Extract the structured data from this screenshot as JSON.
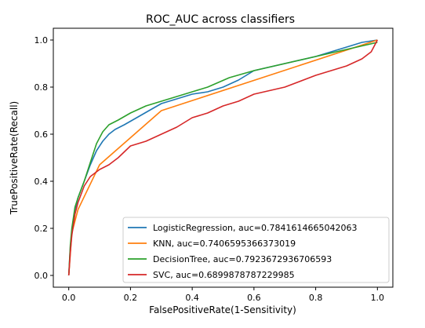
{
  "chart_data": {
    "type": "line",
    "title": "ROC_AUC across classifiers",
    "xlabel": "FalsePositiveRate(1-Sensitivity)",
    "ylabel": "TruePositiveRate(Recall)",
    "xlim": [
      -0.05,
      1.05
    ],
    "ylim": [
      -0.05,
      1.05
    ],
    "xticks": [
      "0.0",
      "0.2",
      "0.4",
      "0.6",
      "0.8",
      "1.0"
    ],
    "yticks": [
      "0.0",
      "0.2",
      "0.4",
      "0.6",
      "0.8",
      "1.0"
    ],
    "grid": false,
    "legend_position": "lower-right",
    "series": [
      {
        "name": "LogisticRegression, auc=0.7841614665042063",
        "color": "#1f77b4",
        "x": [
          0,
          0.005,
          0.01,
          0.02,
          0.03,
          0.05,
          0.07,
          0.09,
          0.11,
          0.13,
          0.15,
          0.18,
          0.22,
          0.26,
          0.3,
          0.35,
          0.4,
          0.45,
          0.5,
          0.55,
          0.6,
          0.7,
          0.8,
          0.9,
          0.95,
          1.0
        ],
        "y": [
          0,
          0.12,
          0.18,
          0.28,
          0.33,
          0.4,
          0.47,
          0.53,
          0.57,
          0.6,
          0.62,
          0.64,
          0.67,
          0.7,
          0.73,
          0.75,
          0.77,
          0.78,
          0.8,
          0.83,
          0.87,
          0.9,
          0.93,
          0.97,
          0.99,
          1.0
        ]
      },
      {
        "name": "KNN, auc=0.7406595366373019",
        "color": "#ff7f0e",
        "x": [
          0,
          0.01,
          0.03,
          0.1,
          0.3,
          1.0
        ],
        "y": [
          0,
          0.18,
          0.28,
          0.47,
          0.7,
          1.0
        ]
      },
      {
        "name": "DecisionTree, auc=0.7923672936706593",
        "color": "#2ca02c",
        "x": [
          0,
          0.005,
          0.01,
          0.02,
          0.03,
          0.05,
          0.07,
          0.09,
          0.11,
          0.13,
          0.16,
          0.2,
          0.25,
          0.3,
          0.35,
          0.4,
          0.45,
          0.52,
          0.6,
          0.7,
          0.8,
          0.9,
          1.0
        ],
        "y": [
          0,
          0.13,
          0.2,
          0.29,
          0.33,
          0.4,
          0.48,
          0.56,
          0.61,
          0.64,
          0.66,
          0.69,
          0.72,
          0.74,
          0.76,
          0.78,
          0.8,
          0.84,
          0.87,
          0.9,
          0.93,
          0.96,
          0.99
        ]
      },
      {
        "name": "SVC, auc=0.6899878787229985",
        "color": "#d62728",
        "x": [
          0,
          0.005,
          0.01,
          0.02,
          0.03,
          0.05,
          0.07,
          0.1,
          0.13,
          0.16,
          0.2,
          0.25,
          0.3,
          0.35,
          0.4,
          0.45,
          0.5,
          0.55,
          0.6,
          0.7,
          0.8,
          0.9,
          0.95,
          0.98,
          1.0
        ],
        "y": [
          0,
          0.1,
          0.17,
          0.26,
          0.31,
          0.38,
          0.42,
          0.45,
          0.47,
          0.5,
          0.55,
          0.57,
          0.6,
          0.63,
          0.67,
          0.69,
          0.72,
          0.74,
          0.77,
          0.8,
          0.85,
          0.89,
          0.92,
          0.95,
          1.0
        ]
      }
    ]
  }
}
